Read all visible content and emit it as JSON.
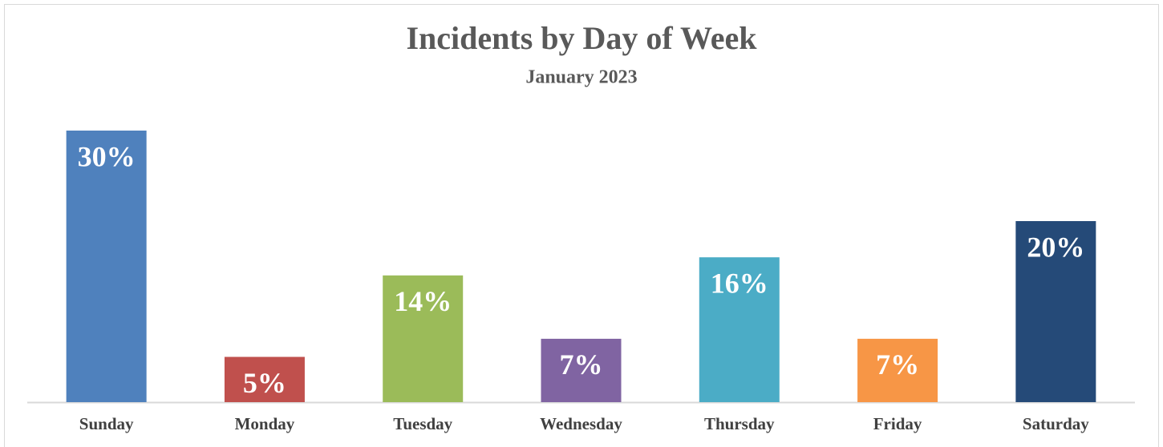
{
  "chart_data": {
    "type": "bar",
    "title": "Incidents by Day of Week",
    "subtitle": "January 2023",
    "categories": [
      "Sunday",
      "Monday",
      "Tuesday",
      "Wednesday",
      "Thursday",
      "Friday",
      "Saturday"
    ],
    "values": [
      30,
      5,
      14,
      7,
      16,
      7,
      20
    ],
    "value_labels": [
      "30%",
      "5%",
      "14%",
      "7%",
      "16%",
      "7%",
      "20%"
    ],
    "colors": [
      "#4f81bd",
      "#c0504d",
      "#9bbb59",
      "#8064a2",
      "#4bacc6",
      "#f79646",
      "#254a78"
    ]
  }
}
